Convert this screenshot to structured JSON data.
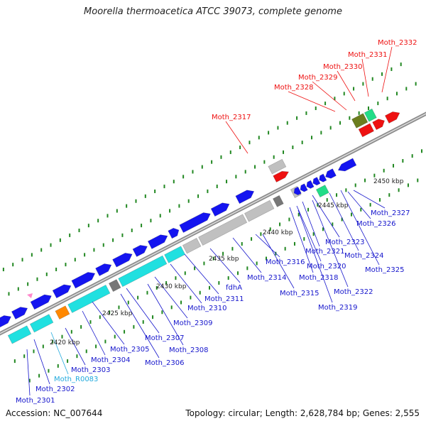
{
  "title": "Moorella thermoacetica ATCC 39073, complete genome",
  "footer": {
    "accession": "Accession: NC_007644",
    "summary": "Topology: circular; Length: 2,628,784 bp; Genes: 2,555"
  },
  "colors": {
    "background": "#ffffff",
    "backbone": "#8c8c8c",
    "forward_cds": "#1414f0",
    "rrna": "#20e0e0",
    "trna": "#ff8800",
    "selected": "#ee1111",
    "pseudo": "#c0c0c0",
    "other": "#22dd88",
    "olive": "#6b7d1e",
    "label_default": "#1515cc",
    "label_selected": "#ee1111",
    "label_rna": "#22aadd",
    "ticks": "#228822"
  },
  "scale_labels": [
    "2420 kbp",
    "2425 kbp",
    "2430 kbp",
    "2435 kbp",
    "2440 kbp",
    "2445 kbp",
    "2450 kbp"
  ],
  "gene_labels": [
    {
      "text": "Moth_2332",
      "type": "selected"
    },
    {
      "text": "Moth_2331",
      "type": "selected"
    },
    {
      "text": "Moth_2330",
      "type": "selected"
    },
    {
      "text": "Moth_2329",
      "type": "selected"
    },
    {
      "text": "Moth_2328",
      "type": "selected"
    },
    {
      "text": "Moth_2317",
      "type": "selected"
    },
    {
      "text": "Moth_2327",
      "type": "default"
    },
    {
      "text": "Moth_2326",
      "type": "default"
    },
    {
      "text": "Moth_2323",
      "type": "default"
    },
    {
      "text": "Moth_2324",
      "type": "default"
    },
    {
      "text": "Moth_2321",
      "type": "default"
    },
    {
      "text": "Moth_2325",
      "type": "default"
    },
    {
      "text": "Moth_2320",
      "type": "default"
    },
    {
      "text": "Moth_2316",
      "type": "default"
    },
    {
      "text": "Moth_2318",
      "type": "default"
    },
    {
      "text": "Moth_2314",
      "type": "default"
    },
    {
      "text": "Moth_2322",
      "type": "default"
    },
    {
      "text": "Moth_2315",
      "type": "default"
    },
    {
      "text": "fdhA",
      "type": "default"
    },
    {
      "text": "Moth_2319",
      "type": "default"
    },
    {
      "text": "Moth_2311",
      "type": "default"
    },
    {
      "text": "Moth_2310",
      "type": "default"
    },
    {
      "text": "Moth_2309",
      "type": "default"
    },
    {
      "text": "Moth_2307",
      "type": "default"
    },
    {
      "text": "Moth_2308",
      "type": "default"
    },
    {
      "text": "Moth_2305",
      "type": "default"
    },
    {
      "text": "Moth_2306",
      "type": "default"
    },
    {
      "text": "Moth_2304",
      "type": "default"
    },
    {
      "text": "Moth_2303",
      "type": "default"
    },
    {
      "text": "Moth_R0083",
      "type": "rna"
    },
    {
      "text": "Moth_2302",
      "type": "default"
    },
    {
      "text": "Moth_2301",
      "type": "default"
    }
  ]
}
